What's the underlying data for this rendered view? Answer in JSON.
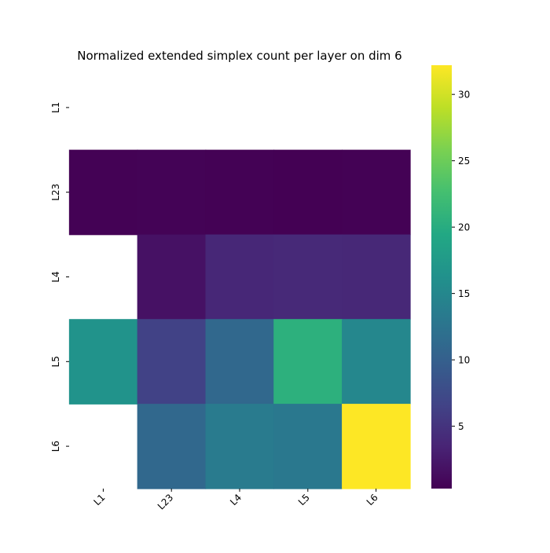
{
  "chart_data": {
    "type": "heatmap",
    "title": "Normalized extended simplex count per layer on dim 6",
    "xlabel": "",
    "ylabel": "",
    "x_categories": [
      "L1",
      "L23",
      "L4",
      "L5",
      "L6"
    ],
    "y_categories": [
      "L1",
      "L23",
      "L4",
      "L5",
      "L6"
    ],
    "values": [
      [
        null,
        null,
        null,
        null,
        null
      ],
      [
        0.4,
        0.5,
        0.35,
        0.3,
        0.35
      ],
      [
        null,
        1.8,
        3.8,
        4.0,
        3.9
      ],
      [
        16.5,
        6.5,
        11.0,
        20.5,
        15.0
      ],
      [
        null,
        11.0,
        13.5,
        13.0,
        32.2
      ]
    ],
    "missing_value_display": "blank",
    "colormap": "viridis",
    "colorbar": {
      "vmin": 0.3,
      "vmax": 32.2,
      "ticks": [
        5,
        10,
        15,
        20,
        25,
        30
      ],
      "tick_labels": [
        "5",
        "10",
        "15",
        "20",
        "25",
        "30"
      ]
    },
    "grid": false,
    "legend": "colorbar-right"
  }
}
